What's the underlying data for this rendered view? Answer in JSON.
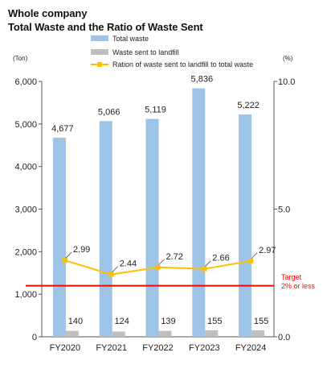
{
  "title_line1": "Whole company",
  "title_line2": "Total Waste and the Ratio of Waste Sent",
  "colors": {
    "total_waste": "#9dc3e6",
    "landfill": "#bfbfbf",
    "ratio": "#ffc000",
    "target": "#ff0000",
    "axis": "#555555"
  },
  "chart_data": {
    "type": "bar",
    "categories": [
      "FY2020",
      "FY2021",
      "FY2022",
      "FY2023",
      "FY2024"
    ],
    "series": [
      {
        "name": "Total waste",
        "type": "bar",
        "axis": "left",
        "values": [
          4677,
          5066,
          5119,
          5836,
          5222
        ],
        "labels": [
          "4,677",
          "5,066",
          "5,119",
          "5,836",
          "5,222"
        ]
      },
      {
        "name": "Waste sent to landfill",
        "type": "bar",
        "axis": "left",
        "values": [
          140,
          124,
          139,
          155,
          155
        ],
        "labels": [
          "140",
          "124",
          "139",
          "155",
          "155"
        ]
      },
      {
        "name": "Ration of waste sent to landfill to total waste",
        "type": "line",
        "axis": "right",
        "values": [
          2.99,
          2.44,
          2.72,
          2.66,
          2.97
        ],
        "labels": [
          "2.99",
          "2.44",
          "2.72",
          "2.66",
          "2.97"
        ]
      }
    ],
    "y_left": {
      "unit": "(Ton)",
      "range": [
        0,
        6000
      ],
      "ticks": [
        0,
        1000,
        2000,
        3000,
        4000,
        5000,
        6000
      ],
      "tick_labels": [
        "0",
        "1,000",
        "2,000",
        "3,000",
        "4,000",
        "5,000",
        "6,000"
      ]
    },
    "y_right": {
      "unit": "(%)",
      "range": [
        0,
        10
      ],
      "ticks": [
        0,
        5,
        10
      ],
      "tick_labels": [
        "0.0",
        "5.0",
        "10.0"
      ]
    },
    "target": {
      "value": 2.0,
      "axis": "right",
      "label_line1": "Target",
      "label_line2": "2% or less"
    },
    "legend_position": "top"
  }
}
